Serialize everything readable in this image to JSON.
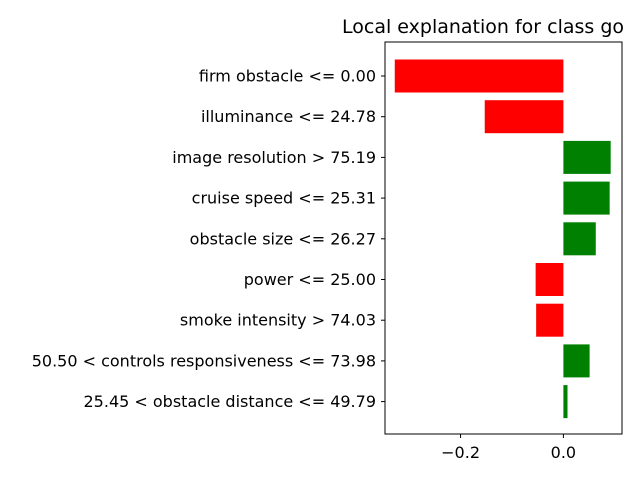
{
  "chart_data": {
    "type": "bar",
    "orientation": "horizontal",
    "title": "Local explanation for class go",
    "xlabel": "",
    "ylabel": "",
    "categories": [
      "firm obstacle <= 0.00",
      "illuminance <= 24.78",
      "image resolution > 75.19",
      "cruise speed <= 25.31",
      "obstacle size <= 26.27",
      "power <= 25.00",
      "smoke intensity > 74.03",
      "50.50 < controls responsiveness <= 73.98",
      "25.45 < obstacle distance <= 49.79"
    ],
    "values": [
      -0.328,
      -0.153,
      0.092,
      0.09,
      0.063,
      -0.054,
      -0.053,
      0.051,
      0.008
    ],
    "xlim": [
      -0.347,
      0.114
    ],
    "xticks": [
      -0.2,
      0.0
    ],
    "xtick_labels": [
      "−0.2",
      "0.0"
    ],
    "grid": false,
    "legend": "none",
    "colors": {
      "positive": "#008000",
      "negative": "#ff0000"
    }
  }
}
